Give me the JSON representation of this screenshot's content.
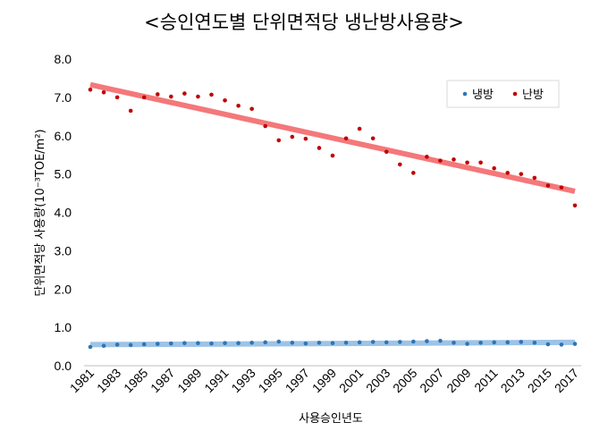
{
  "chart_data": {
    "type": "scatter",
    "title": "<승인연도별 단위면적당 냉난방사용량>",
    "xlabel": "사용승인년도",
    "ylabel": "단위면적당 사용량(10⁻³TOE/m²)",
    "ylim": [
      0,
      8
    ],
    "yticks": [
      "0.0",
      "1.0",
      "2.0",
      "3.0",
      "4.0",
      "5.0",
      "6.0",
      "7.0",
      "8.0"
    ],
    "xticks": [
      "1981",
      "1983",
      "1985",
      "1987",
      "1989",
      "1991",
      "1993",
      "1995",
      "1997",
      "1999",
      "2001",
      "2003",
      "2005",
      "2007",
      "2009",
      "2011",
      "2013",
      "2015",
      "2017"
    ],
    "x": [
      1981,
      1982,
      1983,
      1984,
      1985,
      1986,
      1987,
      1988,
      1989,
      1990,
      1991,
      1992,
      1993,
      1994,
      1995,
      1996,
      1997,
      1998,
      1999,
      2000,
      2001,
      2002,
      2003,
      2004,
      2005,
      2006,
      2007,
      2008,
      2009,
      2010,
      2011,
      2012,
      2013,
      2014,
      2015,
      2016,
      2017
    ],
    "legend_position": "top-right",
    "grid": false,
    "series": [
      {
        "name": "냉방",
        "color": "#2e75b6",
        "trend_color": "#9dc3e6",
        "values": [
          0.49,
          0.52,
          0.55,
          0.54,
          0.56,
          0.57,
          0.58,
          0.59,
          0.59,
          0.58,
          0.59,
          0.59,
          0.6,
          0.61,
          0.63,
          0.6,
          0.58,
          0.6,
          0.59,
          0.6,
          0.61,
          0.62,
          0.61,
          0.62,
          0.63,
          0.64,
          0.65,
          0.6,
          0.57,
          0.6,
          0.61,
          0.61,
          0.62,
          0.6,
          0.56,
          0.55,
          0.57
        ],
        "trend": [
          0.55,
          0.61
        ]
      },
      {
        "name": "난방",
        "color": "#c00000",
        "trend_color": "#f4787a",
        "values": [
          7.2,
          7.13,
          7.0,
          6.65,
          7.0,
          7.08,
          7.02,
          7.1,
          7.02,
          7.07,
          6.92,
          6.78,
          6.7,
          6.25,
          5.88,
          5.97,
          5.92,
          5.68,
          5.48,
          5.93,
          6.18,
          5.93,
          5.58,
          5.25,
          5.03,
          5.45,
          5.35,
          5.38,
          5.3,
          5.3,
          5.15,
          5.03,
          5.0,
          4.9,
          4.7,
          4.65,
          4.18
        ],
        "trend": [
          7.33,
          4.55
        ]
      }
    ]
  }
}
